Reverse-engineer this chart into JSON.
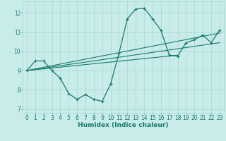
{
  "title": "",
  "xlabel": "Humidex (Indice chaleur)",
  "bg_color": "#c8ecea",
  "line_color": "#1a7a6e",
  "grid_color": "#b0d8d5",
  "xlim": [
    -0.5,
    23.5
  ],
  "ylim": [
    6.8,
    12.6
  ],
  "xticks": [
    0,
    1,
    2,
    3,
    4,
    5,
    6,
    7,
    8,
    9,
    10,
    11,
    12,
    13,
    14,
    15,
    16,
    17,
    18,
    19,
    20,
    21,
    22,
    23
  ],
  "yticks": [
    7,
    8,
    9,
    10,
    11,
    12
  ],
  "series_main": {
    "x": [
      0,
      1,
      2,
      3,
      4,
      5,
      6,
      7,
      8,
      9,
      10,
      11,
      12,
      13,
      14,
      15,
      16,
      17,
      18,
      19,
      20,
      21,
      22,
      23
    ],
    "y": [
      9.0,
      9.5,
      9.5,
      9.0,
      8.6,
      7.8,
      7.5,
      7.75,
      7.5,
      7.4,
      8.3,
      9.9,
      11.7,
      12.2,
      12.25,
      11.7,
      11.1,
      9.8,
      9.75,
      10.45,
      10.6,
      10.85,
      10.45,
      11.1
    ]
  },
  "trend1": {
    "x": [
      0,
      23
    ],
    "y": [
      9.0,
      10.45
    ]
  },
  "trend2": {
    "x": [
      0,
      23
    ],
    "y": [
      9.0,
      10.95
    ]
  },
  "trend3": {
    "x": [
      0,
      18
    ],
    "y": [
      9.0,
      9.8
    ]
  }
}
